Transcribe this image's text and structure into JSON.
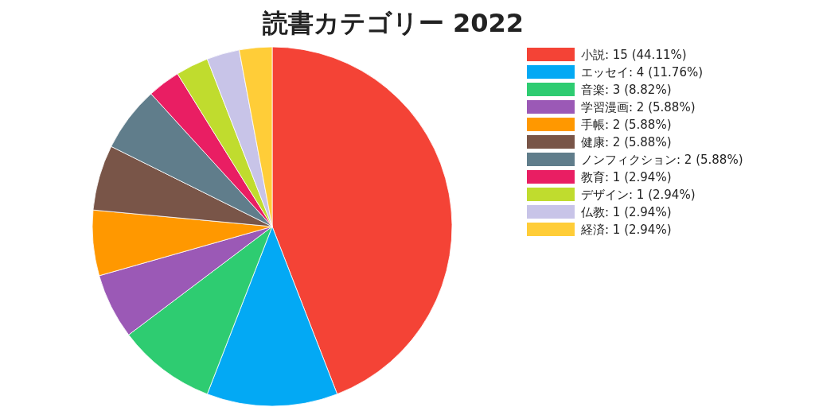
{
  "chart_data": {
    "type": "pie",
    "title": "読書カテゴリー 2022",
    "categories": [
      "小説",
      "エッセイ",
      "音楽",
      "学習漫画",
      "手帳",
      "健康",
      "ノンフィクション",
      "教育",
      "デザイン",
      "仏教",
      "経済"
    ],
    "values": [
      15,
      4,
      3,
      2,
      2,
      2,
      2,
      1,
      1,
      1,
      1
    ],
    "value_labels": [
      "15 (44.11%)",
      "4 (11.76%)",
      "3 (8.82%)",
      "2 (5.88%)",
      "2 (5.88%)",
      "2 (5.88%)",
      "2 (5.88%)",
      "1 (2.94%)",
      "1 (2.94%)",
      "1 (2.94%)",
      "1 (2.94%)"
    ],
    "colors": [
      "#f44336",
      "#03a9f4",
      "#2ecc71",
      "#9b59b6",
      "#ff9800",
      "#795548",
      "#607d8b",
      "#e91e63",
      "#c0dc2e",
      "#c8c4e8",
      "#ffcd38"
    ],
    "legend": "top right"
  }
}
